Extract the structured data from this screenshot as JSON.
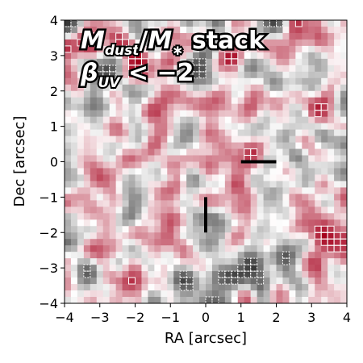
{
  "chart_data": {
    "type": "heatmap",
    "title_lines": [
      [
        {
          "text": "M",
          "style": "italic"
        },
        {
          "text": "dust",
          "style": "sub"
        },
        {
          "text": "/",
          "style": "plain"
        },
        {
          "text": "M",
          "style": "italic"
        },
        {
          "text": "∗",
          "style": "sub"
        },
        {
          "text": " stack",
          "style": "plain"
        }
      ],
      [
        {
          "text": "β",
          "style": "italic"
        },
        {
          "text": "UV",
          "style": "sub"
        },
        {
          "text": " < −2",
          "style": "plain"
        }
      ]
    ],
    "xlabel": "RA [arcsec]",
    "ylabel": "Dec [arcsec]",
    "xlim": [
      -4,
      4
    ],
    "ylim": [
      -4,
      4
    ],
    "xticks": [
      "−4",
      "−3",
      "−2",
      "−1",
      "0",
      "1",
      "2",
      "3",
      "4"
    ],
    "yticks": [
      "−4",
      "−3",
      "−2",
      "−1",
      "0",
      "1",
      "2",
      "3",
      "4"
    ],
    "colormap": "diverging grey-white-red",
    "colors": {
      "positive": "#a5001c",
      "negative": "#3a3a3a",
      "neutral": "#ffffff",
      "contour_positive": "#ffffff",
      "contour_negative": "#ffffff",
      "marker": "#000000"
    },
    "markers": [
      {
        "name": "horizontal-bar",
        "x": [
          1.0,
          2.0
        ],
        "y": [
          0.0,
          0.0
        ]
      },
      {
        "name": "vertical-bar",
        "x": [
          0.0,
          0.0
        ],
        "y": [
          -1.0,
          -2.0
        ]
      }
    ]
  }
}
